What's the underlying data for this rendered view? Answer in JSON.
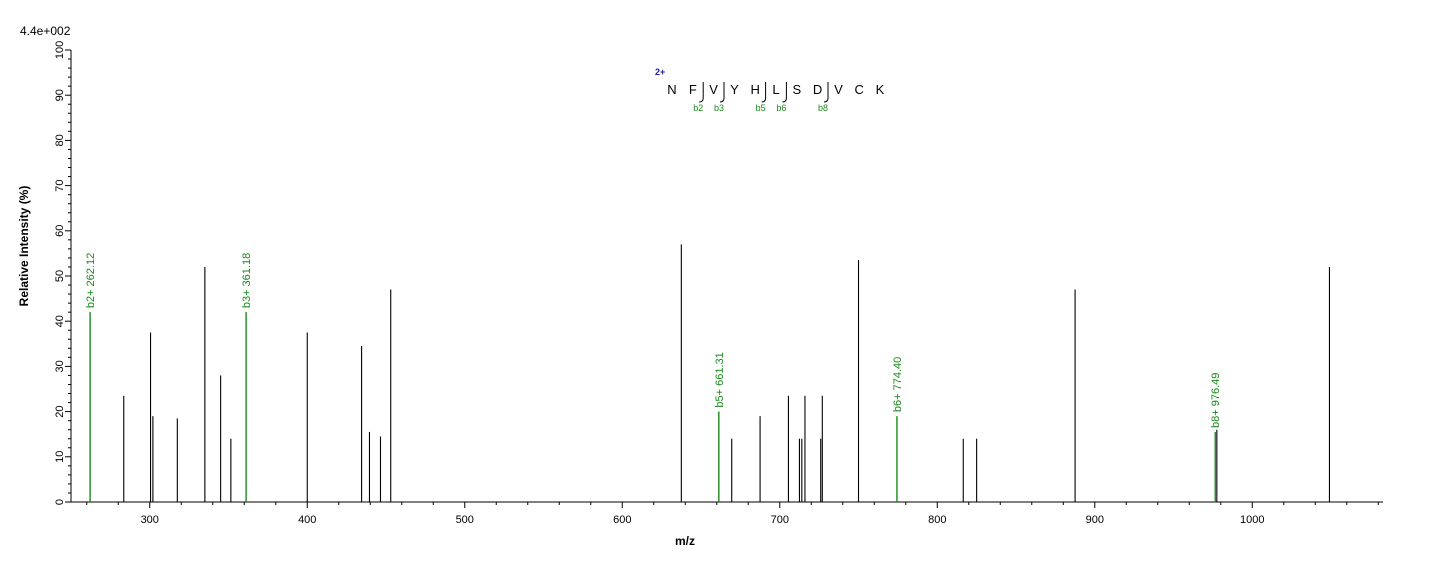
{
  "chart_data": {
    "type": "bar",
    "max_intensity_label": "4.4e+002",
    "xlabel": "m/z",
    "ylabel": "Relative   Intensity (%)",
    "xlim": [
      250,
      1083
    ],
    "ylim": [
      0,
      100
    ],
    "x_ticks": [
      300,
      400,
      500,
      600,
      700,
      800,
      900,
      1000
    ],
    "y_ticks": [
      0,
      10,
      20,
      30,
      40,
      50,
      60,
      70,
      80,
      90,
      100
    ],
    "colors": {
      "peak": "#000000",
      "annotated": "#1a8a1a",
      "charge": "#1f1f9c",
      "axis": "#000000"
    },
    "peaks": [
      {
        "mz": 262.12,
        "intensity": 42,
        "label": "b2+ 262.12"
      },
      {
        "mz": 283.5,
        "intensity": 23.5
      },
      {
        "mz": 300.5,
        "intensity": 37.5
      },
      {
        "mz": 302.0,
        "intensity": 19
      },
      {
        "mz": 317.5,
        "intensity": 18.5
      },
      {
        "mz": 335.0,
        "intensity": 52
      },
      {
        "mz": 345.0,
        "intensity": 28
      },
      {
        "mz": 351.5,
        "intensity": 14
      },
      {
        "mz": 361.18,
        "intensity": 42,
        "label": "b3+ 361.18"
      },
      {
        "mz": 400.0,
        "intensity": 37.5
      },
      {
        "mz": 434.5,
        "intensity": 34.5
      },
      {
        "mz": 439.5,
        "intensity": 15.5
      },
      {
        "mz": 446.5,
        "intensity": 14.5
      },
      {
        "mz": 453.0,
        "intensity": 47
      },
      {
        "mz": 637.5,
        "intensity": 57
      },
      {
        "mz": 661.31,
        "intensity": 20,
        "label": "b5+ 661.31"
      },
      {
        "mz": 669.5,
        "intensity": 14
      },
      {
        "mz": 687.5,
        "intensity": 19
      },
      {
        "mz": 705.5,
        "intensity": 23.5
      },
      {
        "mz": 712.5,
        "intensity": 14
      },
      {
        "mz": 714.0,
        "intensity": 14
      },
      {
        "mz": 716.0,
        "intensity": 23.5
      },
      {
        "mz": 726.0,
        "intensity": 14
      },
      {
        "mz": 727.0,
        "intensity": 23.5
      },
      {
        "mz": 750.0,
        "intensity": 53.5
      },
      {
        "mz": 774.4,
        "intensity": 19,
        "label": "b6+ 774.40"
      },
      {
        "mz": 816.5,
        "intensity": 14
      },
      {
        "mz": 825.0,
        "intensity": 14
      },
      {
        "mz": 887.5,
        "intensity": 47
      },
      {
        "mz": 976.49,
        "intensity": 15.5,
        "label": "b8+ 976.49"
      },
      {
        "mz": 977.5,
        "intensity": 16
      },
      {
        "mz": 1049.0,
        "intensity": 52
      }
    ],
    "sequence": {
      "charge": "2+",
      "residues": [
        "N",
        "F",
        "V",
        "Y",
        "H",
        "L",
        "S",
        "D",
        "V",
        "C",
        "K"
      ],
      "fragments": [
        {
          "after_index": 1,
          "label": "b2"
        },
        {
          "after_index": 2,
          "label": "b3"
        },
        {
          "after_index": 4,
          "label": "b5"
        },
        {
          "after_index": 5,
          "label": "b6"
        },
        {
          "after_index": 7,
          "label": "b8"
        }
      ]
    }
  }
}
